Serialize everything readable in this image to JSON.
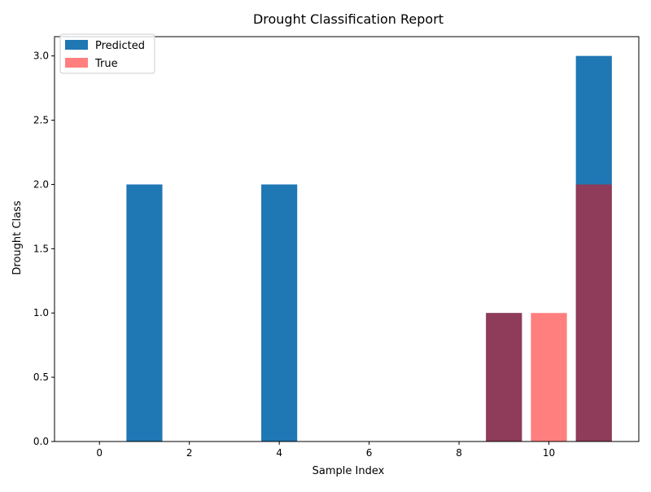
{
  "chart_data": {
    "type": "bar",
    "title": "Drought Classification Report",
    "xlabel": "Sample Index",
    "ylabel": "Drought Class",
    "xlim": [
      -1.0,
      12.0
    ],
    "ylim": [
      0,
      3.15
    ],
    "xticks": [
      0,
      2,
      4,
      6,
      8,
      10
    ],
    "yticks": [
      0.0,
      0.5,
      1.0,
      1.5,
      2.0,
      2.5,
      3.0
    ],
    "x": [
      0,
      1,
      2,
      3,
      4,
      5,
      6,
      7,
      8,
      9,
      10,
      11
    ],
    "series": [
      {
        "name": "Predicted",
        "color": "#1f77b4",
        "opacity": 1.0,
        "values": [
          0,
          2,
          0,
          0,
          2,
          0,
          0,
          0,
          0,
          1,
          0,
          3
        ]
      },
      {
        "name": "True",
        "color": "#ff0000",
        "opacity": 0.5,
        "values": [
          0,
          0,
          0,
          0,
          0,
          0,
          0,
          0,
          0,
          1,
          1,
          2
        ]
      }
    ],
    "grid": false,
    "legend_position": "upper-left"
  }
}
